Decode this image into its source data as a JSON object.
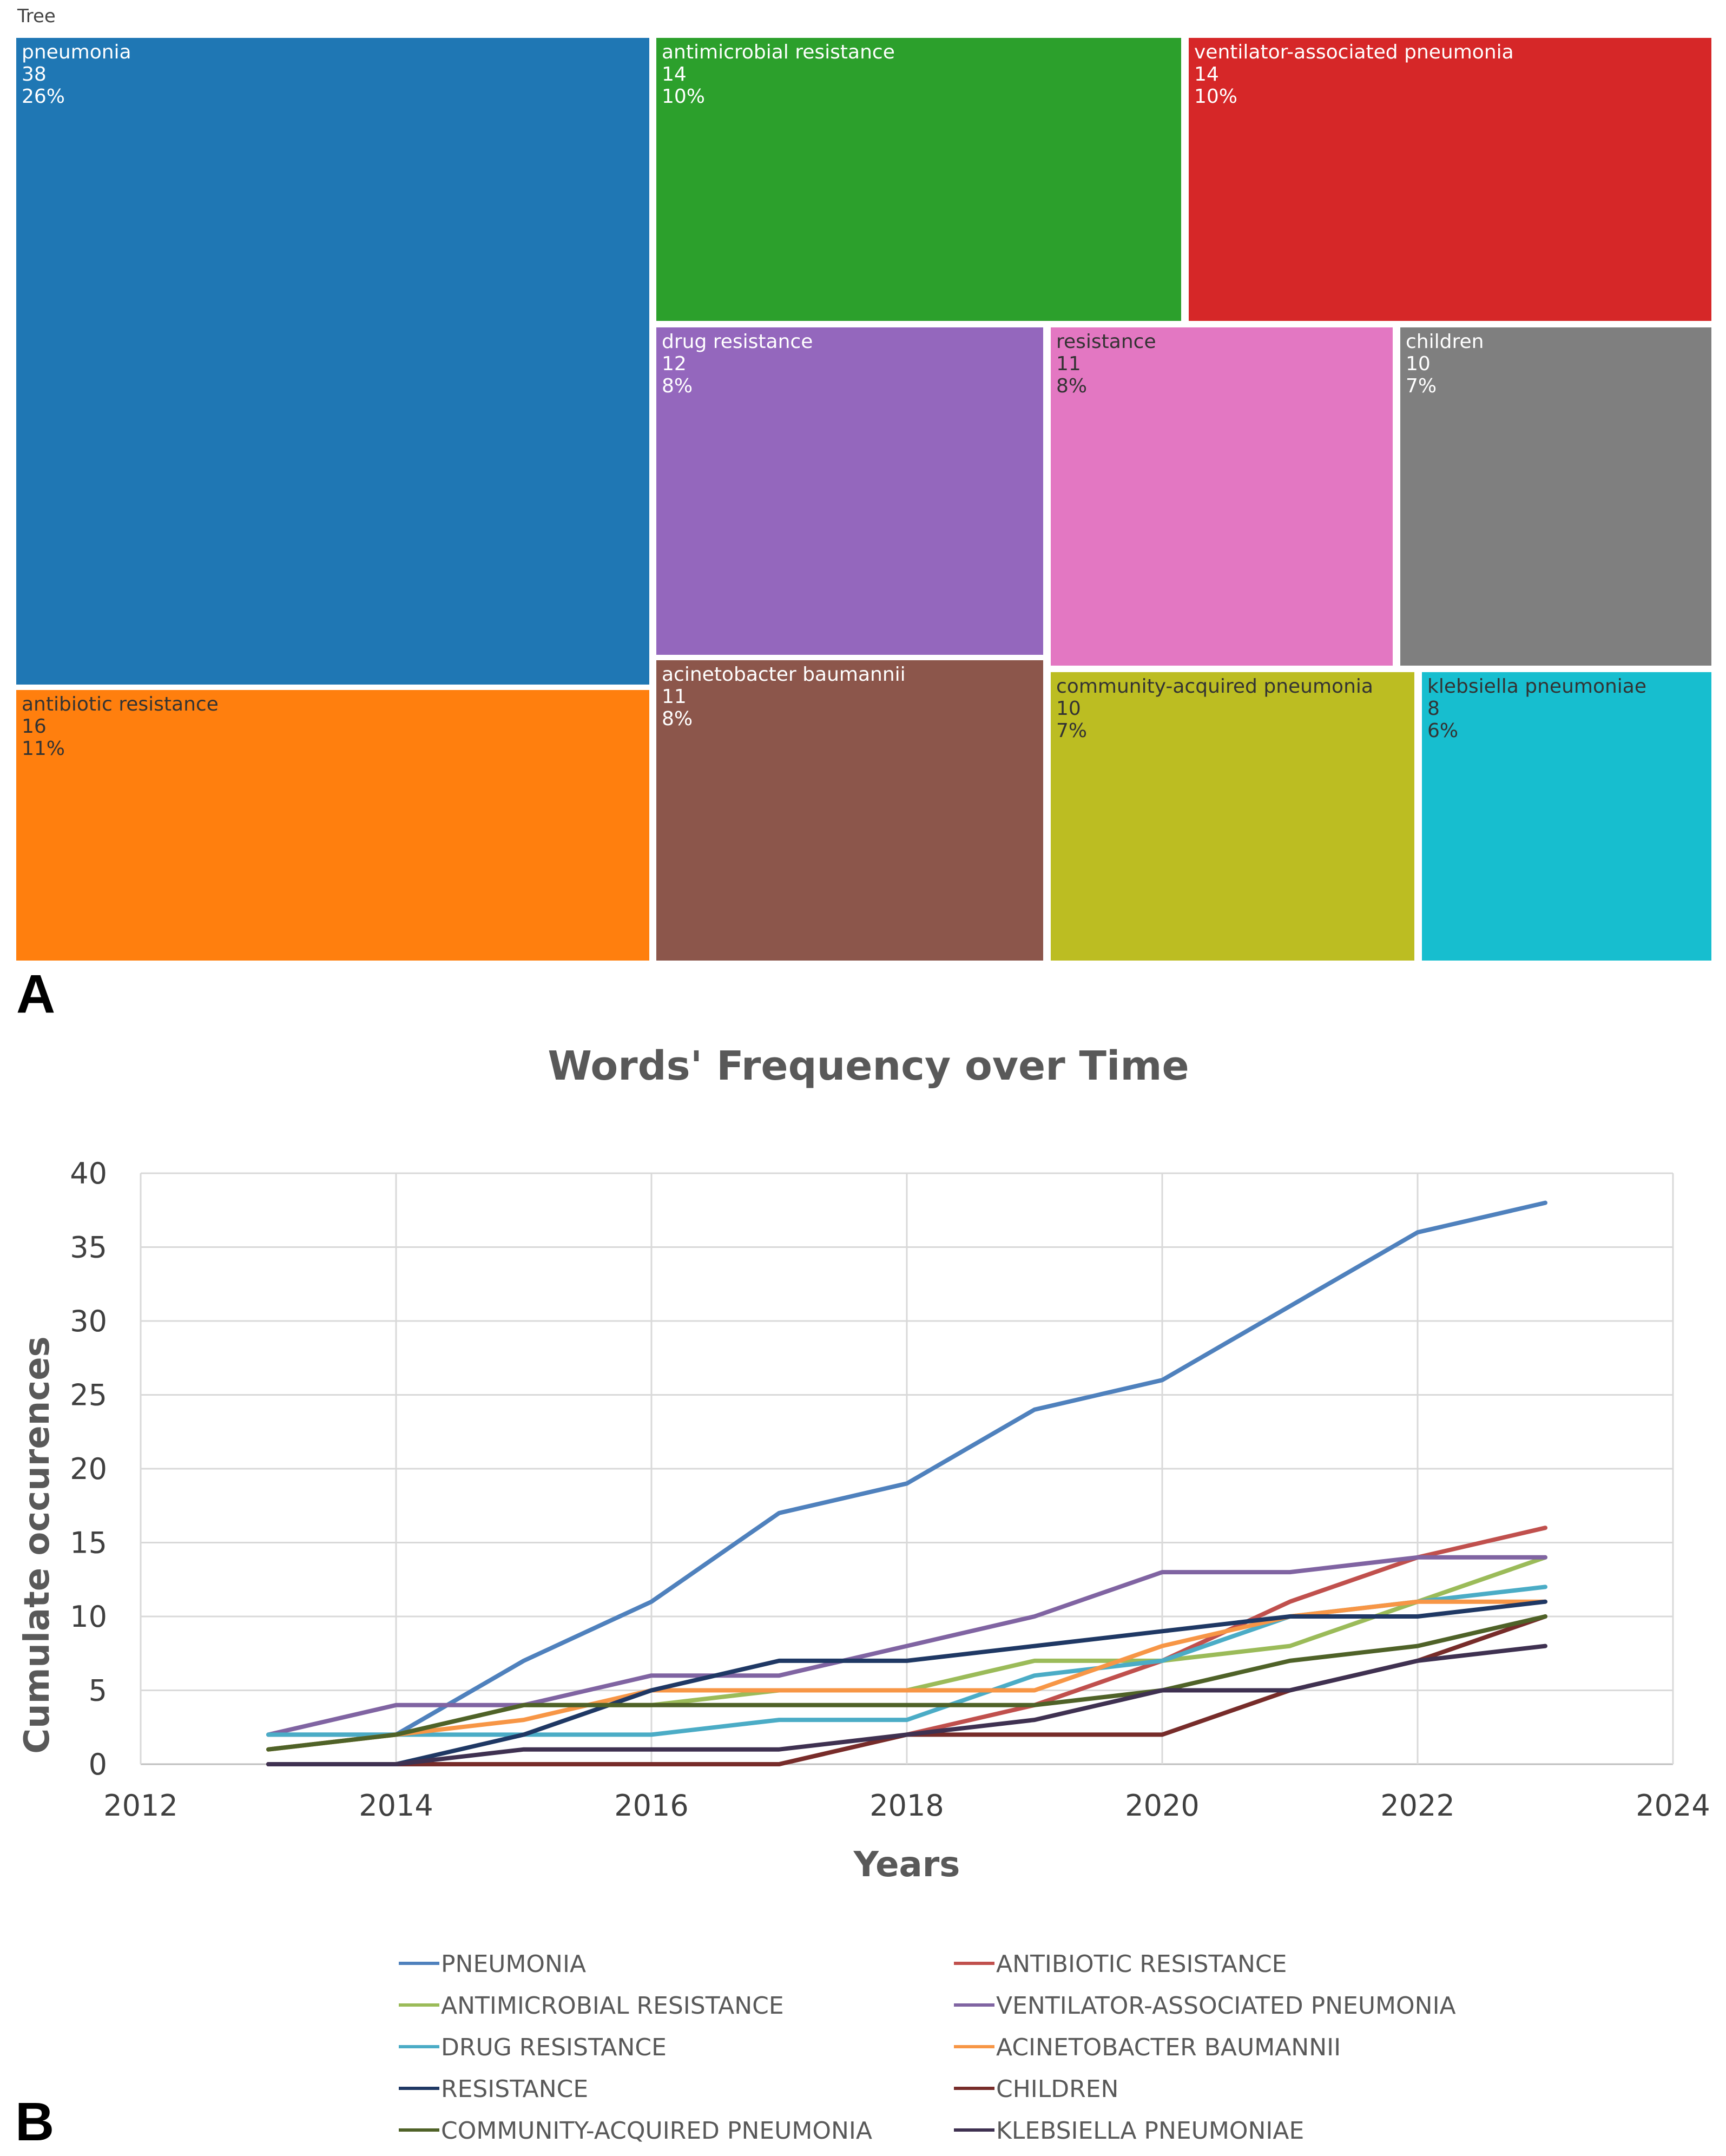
{
  "treemap": {
    "panel_label": "A",
    "title": "Tree",
    "items": [
      {
        "label": "pneumonia",
        "count": "38",
        "pct": "26%",
        "color": "#1f77b4",
        "text_color": "#ffffff"
      },
      {
        "label": "antibiotic resistance",
        "count": "16",
        "pct": "11%",
        "color": "#ff7f0e",
        "text_color": "#333333"
      },
      {
        "label": "antimicrobial resistance",
        "count": "14",
        "pct": "10%",
        "color": "#2ca02c",
        "text_color": "#ffffff"
      },
      {
        "label": "ventilator-associated pneumonia",
        "count": "14",
        "pct": "10%",
        "color": "#d62728",
        "text_color": "#ffffff"
      },
      {
        "label": "drug resistance",
        "count": "12",
        "pct": "8%",
        "color": "#9467bd",
        "text_color": "#ffffff"
      },
      {
        "label": "resistance",
        "count": "11",
        "pct": "8%",
        "color": "#e377c2",
        "text_color": "#333333"
      },
      {
        "label": "children",
        "count": "10",
        "pct": "7%",
        "color": "#7f7f7f",
        "text_color": "#ffffff"
      },
      {
        "label": "acinetobacter baumannii",
        "count": "11",
        "pct": "8%",
        "color": "#8c564b",
        "text_color": "#ffffff"
      },
      {
        "label": "community-acquired pneumonia",
        "count": "10",
        "pct": "7%",
        "color": "#bcbd22",
        "text_color": "#333333"
      },
      {
        "label": "klebsiella pneumoniae",
        "count": "8",
        "pct": "6%",
        "color": "#17becf",
        "text_color": "#333333"
      }
    ]
  },
  "chart_data": {
    "panel_label": "B",
    "type": "line",
    "title": "Words' Frequency over Time",
    "xlabel": "Years",
    "ylabel": "Cumulate occurences",
    "xlim": [
      2012,
      2024
    ],
    "ylim": [
      0,
      40
    ],
    "x_ticks": [
      2012,
      2014,
      2016,
      2018,
      2020,
      2022,
      2024
    ],
    "y_ticks": [
      0,
      5,
      10,
      15,
      20,
      25,
      30,
      35,
      40
    ],
    "grid": true,
    "legend_position": "bottom",
    "x": [
      2013,
      2014,
      2015,
      2016,
      2017,
      2018,
      2019,
      2020,
      2021,
      2022,
      2023
    ],
    "series": [
      {
        "name": "PNEUMONIA",
        "color": "#4f81bd",
        "values": [
          2,
          2,
          7,
          11,
          17,
          19,
          24,
          26,
          31,
          36,
          38
        ]
      },
      {
        "name": "ANTIBIOTIC RESISTANCE",
        "color": "#c0504d",
        "values": [
          0,
          0,
          0,
          0,
          0,
          2,
          4,
          7,
          11,
          14,
          16
        ]
      },
      {
        "name": "ANTIMICROBIAL RESISTANCE",
        "color": "#9bbb59",
        "values": [
          1,
          2,
          4,
          4,
          5,
          5,
          7,
          7,
          8,
          11,
          14
        ]
      },
      {
        "name": "VENTILATOR-ASSOCIATED PNEUMONIA",
        "color": "#8064a2",
        "values": [
          2,
          4,
          4,
          6,
          6,
          8,
          10,
          13,
          13,
          14,
          14
        ]
      },
      {
        "name": "DRUG RESISTANCE",
        "color": "#4bacc6",
        "values": [
          2,
          2,
          2,
          2,
          3,
          3,
          6,
          7,
          10,
          11,
          12
        ]
      },
      {
        "name": "ACINETOBACTER BAUMANNII",
        "color": "#f79646",
        "values": [
          1,
          2,
          3,
          5,
          5,
          5,
          5,
          8,
          10,
          11,
          11
        ]
      },
      {
        "name": "RESISTANCE",
        "color": "#1f3864",
        "values": [
          0,
          0,
          2,
          5,
          7,
          7,
          8,
          9,
          10,
          10,
          11
        ]
      },
      {
        "name": "CHILDREN",
        "color": "#772c2a",
        "values": [
          0,
          0,
          0,
          0,
          0,
          2,
          2,
          2,
          5,
          7,
          10
        ]
      },
      {
        "name": "COMMUNITY-ACQUIRED PNEUMONIA",
        "color": "#4f6228",
        "values": [
          1,
          2,
          4,
          4,
          4,
          4,
          4,
          5,
          7,
          8,
          10
        ]
      },
      {
        "name": "KLEBSIELLA PNEUMONIAE",
        "color": "#3f3151",
        "values": [
          0,
          0,
          1,
          1,
          1,
          2,
          3,
          5,
          5,
          7,
          8
        ]
      }
    ]
  }
}
